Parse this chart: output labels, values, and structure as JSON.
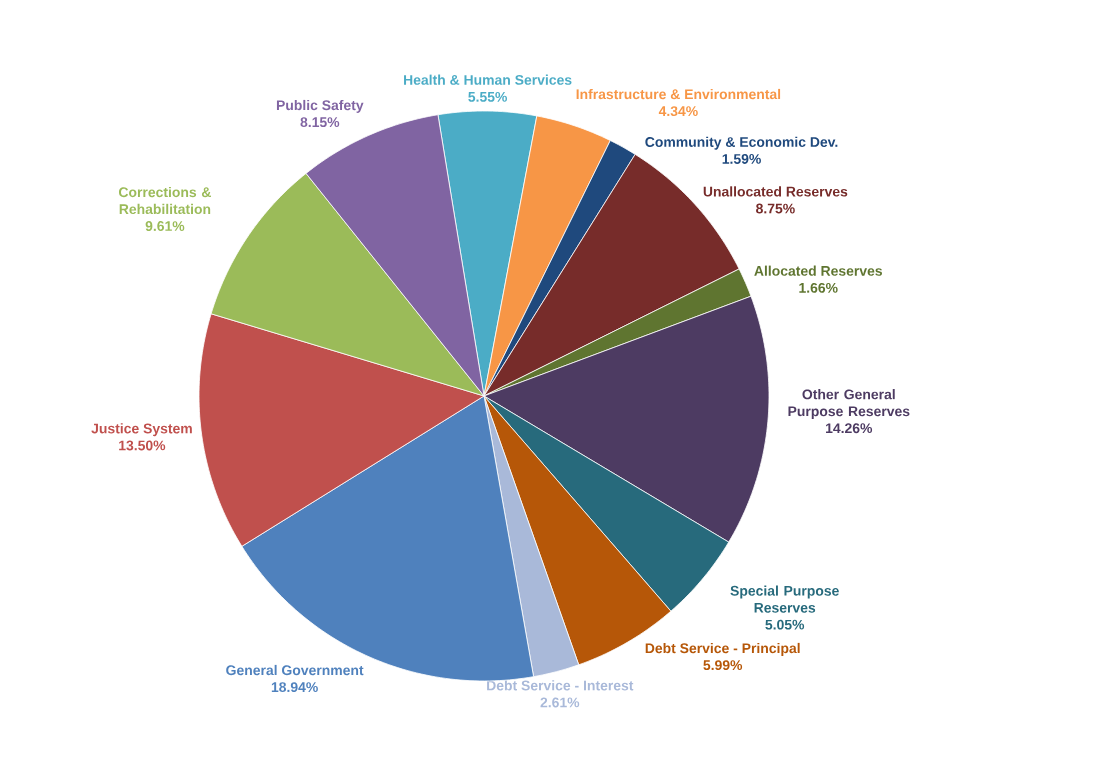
{
  "chart_data": {
    "type": "pie",
    "categories": [
      "Health & Human Services",
      "Infrastructure & Environmental",
      "Community & Economic Dev.",
      "Unallocated  Reserves",
      "Allocated Reserves",
      "Other General Purpose Reserves",
      "Special Purpose Reserves",
      "Debt Service - Principal",
      "Debt Service - Interest",
      "General Government",
      "Justice System",
      "Corrections & Rehabilitation",
      "Public Safety"
    ],
    "values": [
      5.55,
      4.34,
      1.59,
      8.75,
      1.66,
      14.26,
      5.05,
      5.99,
      2.61,
      18.94,
      13.5,
      9.61,
      8.15
    ],
    "value_labels": [
      "5.55%",
      "4.34%",
      "1.59%",
      "8.75%",
      "1.66%",
      "14.26%",
      "5.05%",
      "5.99%",
      "2.61%",
      "18.94%",
      "13.50%",
      "9.61%",
      "8.15%"
    ],
    "colors": [
      "#4bacc6",
      "#f79646",
      "#1f497d",
      "#772c2a",
      "#5f7530",
      "#4d3b62",
      "#276a7c",
      "#b65708",
      "#a9b9d9",
      "#4f81bd",
      "#c0504d",
      "#9bbb59",
      "#8064a2"
    ]
  }
}
